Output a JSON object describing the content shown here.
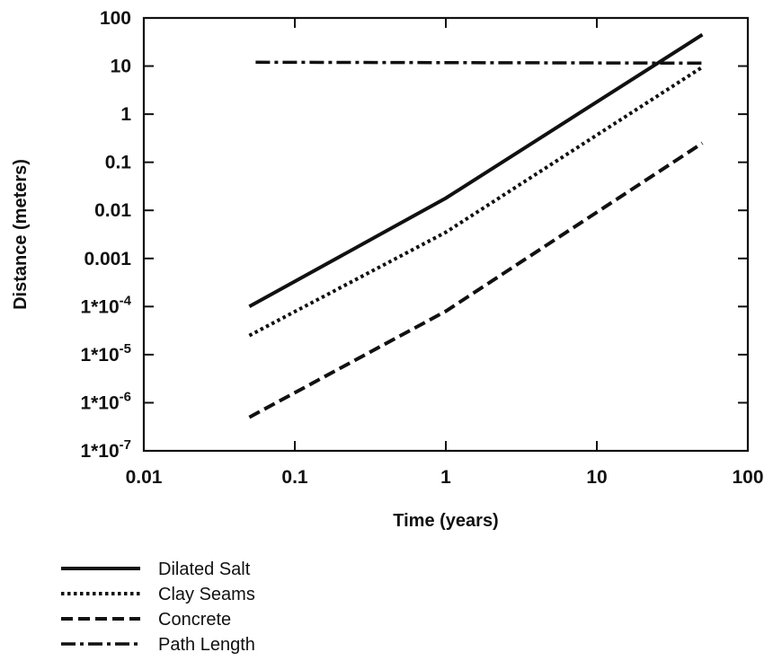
{
  "chart_data": {
    "type": "line",
    "xlabel": "Time (years)",
    "ylabel": "Distance (meters)",
    "x_scale": "log",
    "y_scale": "log",
    "xlim": [
      0.01,
      100
    ],
    "ylim": [
      1e-07,
      100
    ],
    "x_ticks": [
      0.01,
      0.1,
      1,
      10,
      100
    ],
    "x_tick_labels": [
      "0.01",
      "0.1",
      "1",
      "10",
      "100"
    ],
    "y_ticks": [
      100,
      10,
      1,
      0.1,
      0.01,
      0.001,
      0.0001,
      1e-05,
      1e-06,
      1e-07
    ],
    "y_tick_labels": [
      "100",
      "10",
      "1",
      "0.1",
      "0.01",
      "0.001",
      "1*10-4",
      "1*10-5",
      "1*10-6",
      "1*10-7"
    ],
    "grid": false,
    "legend_position": "below-left",
    "series": [
      {
        "name": "Dilated Salt",
        "style": "solid",
        "color": "#111111",
        "points": [
          [
            0.05,
            0.0001
          ],
          [
            1,
            0.018
          ],
          [
            50,
            45
          ]
        ]
      },
      {
        "name": "Clay Seams",
        "style": "dotted",
        "color": "#111111",
        "points": [
          [
            0.05,
            2.5e-05
          ],
          [
            1,
            0.0035
          ],
          [
            50,
            9.5
          ]
        ]
      },
      {
        "name": "Concrete",
        "style": "dashed",
        "color": "#111111",
        "points": [
          [
            0.05,
            5e-07
          ],
          [
            1,
            8e-05
          ],
          [
            50,
            0.25
          ]
        ]
      },
      {
        "name": "Path Length",
        "style": "dashdot",
        "color": "#111111",
        "points": [
          [
            0.055,
            12
          ],
          [
            50,
            11.5
          ]
        ]
      }
    ]
  }
}
